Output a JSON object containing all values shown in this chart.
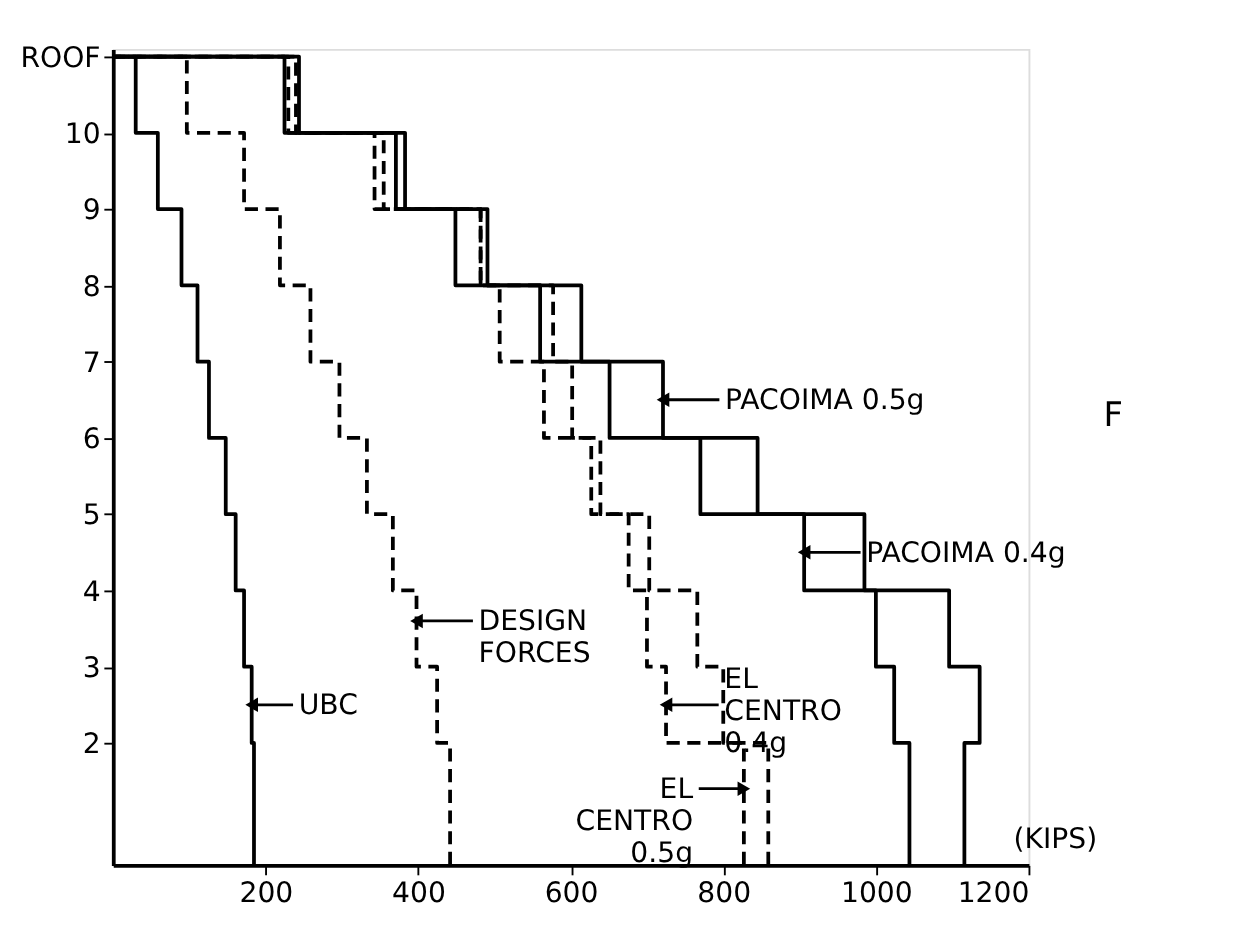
{
  "chart_data": {
    "type": "line",
    "xlabel": "(KIPS)",
    "xlim": [
      0,
      1200
    ],
    "xticks": [
      200,
      400,
      600,
      800,
      1000,
      1200
    ],
    "ylim": [
      0.4,
      11.1
    ],
    "yticks": [
      2,
      3,
      4,
      5,
      6,
      7,
      8,
      9,
      10,
      {
        "value": 11,
        "label": "ROOF"
      }
    ],
    "grid": false,
    "marker": "none",
    "series": [
      {
        "color": "#000000",
        "line_style": "solid",
        "x": [
          185,
          185,
          182,
          182,
          172,
          172,
          161,
          161,
          148,
          148,
          126,
          126,
          111,
          111,
          90,
          90,
          59,
          59,
          30,
          30,
          0
        ],
        "values": [
          0.4,
          2,
          2,
          3,
          3,
          4,
          4,
          5,
          5,
          6,
          6,
          7,
          7,
          8,
          8,
          9,
          9,
          10,
          10,
          11,
          11
        ]
      },
      {
        "color": "#000000",
        "line_style": "dashed",
        "x": [
          442,
          442,
          425,
          425,
          398,
          398,
          367,
          367,
          333,
          333,
          297,
          297,
          259,
          259,
          219,
          219,
          172,
          172,
          97,
          97,
          0
        ],
        "values": [
          0.4,
          2,
          2,
          3,
          3,
          4,
          4,
          5,
          5,
          6,
          6,
          7,
          7,
          8,
          8,
          9,
          9,
          10,
          10,
          11,
          11
        ]
      },
      {
        "color": "#000000",
        "line_style": "solid",
        "x": [
          1116,
          1116,
          1136,
          1136,
          1096,
          1096,
          985,
          985,
          845,
          845,
          721,
          721,
          614,
          614,
          491,
          491,
          383,
          383,
          244,
          244,
          0
        ],
        "values": [
          0.4,
          2,
          2,
          3,
          3,
          4,
          4,
          5,
          5,
          6,
          6,
          7,
          7,
          8,
          8,
          9,
          9,
          10,
          10,
          11,
          11
        ]
      },
      {
        "color": "#000000",
        "line_style": "solid",
        "x": [
          1044,
          1044,
          1024,
          1024,
          1000,
          1000,
          906,
          906,
          770,
          770,
          651,
          651,
          560,
          560,
          449,
          449,
          371,
          371,
          225,
          225,
          0
        ],
        "values": [
          0.4,
          2,
          2,
          3,
          3,
          4,
          4,
          5,
          5,
          6,
          6,
          7,
          7,
          8,
          8,
          9,
          9,
          10,
          10,
          11,
          11
        ]
      },
      {
        "color": "#000000",
        "line_style": "dashed",
        "x": [
          827,
          827,
          725,
          725,
          700,
          700,
          676,
          676,
          627,
          627,
          565,
          565,
          507,
          507,
          482,
          482,
          343,
          343,
          230,
          230,
          0
        ],
        "values": [
          0.4,
          2,
          2,
          3,
          3,
          4,
          4,
          5,
          5,
          6,
          6,
          7,
          7,
          8,
          8,
          9,
          9,
          10,
          10,
          11,
          11
        ]
      },
      {
        "color": "#000000",
        "line_style": "dashed",
        "x": [
          859,
          859,
          800,
          800,
          766,
          766,
          703,
          703,
          639,
          639,
          602,
          602,
          577,
          577,
          482,
          482,
          355,
          355,
          240,
          240,
          0
        ],
        "values": [
          0.4,
          2,
          2,
          3,
          3,
          4,
          4,
          5,
          5,
          6,
          6,
          7,
          7,
          8,
          8,
          9,
          9,
          10,
          10,
          11,
          11
        ]
      }
    ],
    "annotations": [
      {
        "text": "UBC",
        "x": 182,
        "y": 2.5
      },
      {
        "text": "DESIGN\nFORCES",
        "x": 398,
        "y": 3.6
      },
      {
        "text": "PACOIMA 0.5g",
        "x": 721,
        "y": 6.5
      },
      {
        "text": "PACOIMA 0.4g",
        "x": 906,
        "y": 4.5
      },
      {
        "text": "EL\nCENTRO\n0.4g",
        "x": 725,
        "y": 2.5
      },
      {
        "text": "EL\nCENTRO\n0.5g",
        "x": 827,
        "y": 1.4
      },
      "F"
    ]
  }
}
